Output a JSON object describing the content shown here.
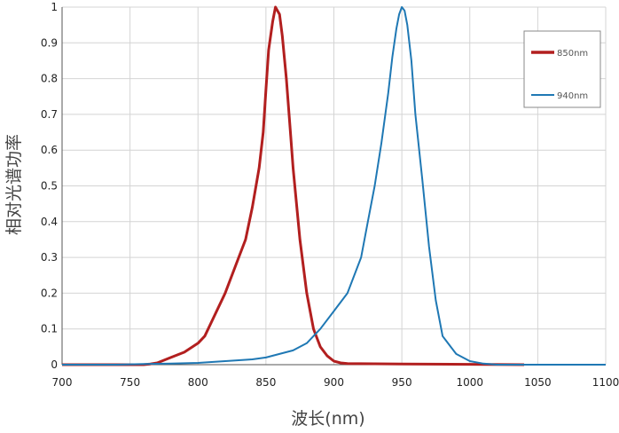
{
  "chart_data": {
    "type": "line",
    "xlabel": "波长(nm)",
    "ylabel": "相对光谱功率",
    "xlim": [
      700,
      1100
    ],
    "ylim": [
      0,
      1
    ],
    "xticks": [
      "700",
      "750",
      "800",
      "850",
      "900",
      "950",
      "1000",
      "1050",
      "1100"
    ],
    "yticks": [
      "0",
      "0.1",
      "0.2",
      "0.3",
      "0.4",
      "0.5",
      "0.6",
      "0.7",
      "0.8",
      "0.9",
      "1"
    ],
    "grid": true,
    "legend_position": "top-right",
    "series": [
      {
        "name": "850nm",
        "color": "#b21f1f",
        "x": [
          700,
          760,
          765,
          770,
          780,
          790,
          800,
          805,
          810,
          820,
          830,
          835,
          840,
          845,
          848,
          850,
          852,
          855,
          857,
          860,
          862,
          865,
          868,
          870,
          875,
          880,
          885,
          890,
          895,
          900,
          905,
          910,
          950,
          1000,
          1040
        ],
        "y": [
          0,
          0,
          0.002,
          0.005,
          0.02,
          0.035,
          0.06,
          0.08,
          0.12,
          0.2,
          0.3,
          0.35,
          0.44,
          0.55,
          0.65,
          0.77,
          0.88,
          0.96,
          1.0,
          0.98,
          0.92,
          0.8,
          0.65,
          0.55,
          0.35,
          0.2,
          0.1,
          0.05,
          0.025,
          0.01,
          0.005,
          0.003,
          0.002,
          0.001,
          0
        ]
      },
      {
        "name": "940nm",
        "color": "#1f78b4",
        "x": [
          700,
          740,
          760,
          780,
          800,
          820,
          840,
          850,
          860,
          870,
          880,
          890,
          900,
          910,
          920,
          925,
          930,
          935,
          940,
          943,
          946,
          948,
          950,
          952,
          954,
          957,
          960,
          965,
          970,
          975,
          980,
          990,
          1000,
          1010,
          1020,
          1100
        ],
        "y": [
          0,
          0,
          0.002,
          0.003,
          0.005,
          0.01,
          0.015,
          0.02,
          0.03,
          0.04,
          0.06,
          0.1,
          0.15,
          0.2,
          0.3,
          0.4,
          0.5,
          0.62,
          0.76,
          0.86,
          0.94,
          0.98,
          1.0,
          0.99,
          0.95,
          0.85,
          0.7,
          0.52,
          0.33,
          0.18,
          0.08,
          0.03,
          0.01,
          0.003,
          0,
          0
        ]
      }
    ]
  }
}
